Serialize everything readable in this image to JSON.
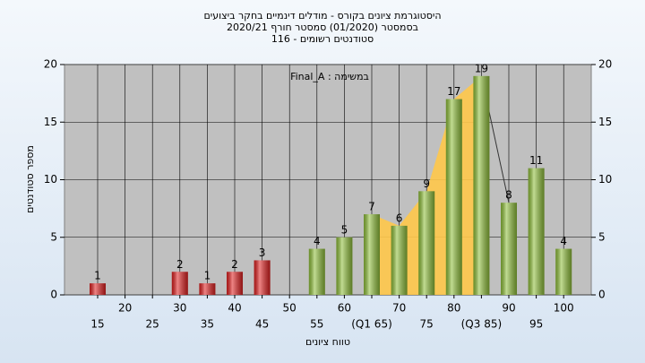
{
  "chart_data": {
    "type": "bar",
    "title": [
      "היסטוגרמת ציונים בקורס - מודלים דינמיים בחקר ביצועים",
      "בסמסטר  (01/2020)  סמסטר חורף  2020/21",
      "סטודנטים רשומים - 116"
    ],
    "annotation": "Final_A : במשימה",
    "x_label": "טווח ציונים",
    "y_label": "מספר סטודנטים",
    "categories": [
      "15",
      "20",
      "25",
      "30",
      "35",
      "40",
      "45",
      "50",
      "55",
      "60",
      "(Q1 65)",
      "70",
      "75",
      "80",
      "(Q3 85)",
      "90",
      "95",
      "100"
    ],
    "values": [
      1,
      null,
      null,
      2,
      1,
      2,
      3,
      null,
      4,
      5,
      7,
      6,
      9,
      17,
      19,
      8,
      11,
      4
    ],
    "colors": [
      "#e02020",
      "#e02020",
      "#e02020",
      "#e02020",
      "#e02020",
      "#e02020",
      "#e02020",
      "#e02020",
      "#8fbf3a",
      "#8fbf3a",
      "#8fbf3a",
      "#8fbf3a",
      "#8fbf3a",
      "#8fbf3a",
      "#8fbf3a",
      "#8fbf3a",
      "#8fbf3a",
      "#8fbf3a"
    ],
    "area_color": "#ffc84a",
    "ylim": [
      0,
      20
    ],
    "yticks": [
      0,
      5,
      10,
      15,
      20
    ],
    "grid": true
  }
}
